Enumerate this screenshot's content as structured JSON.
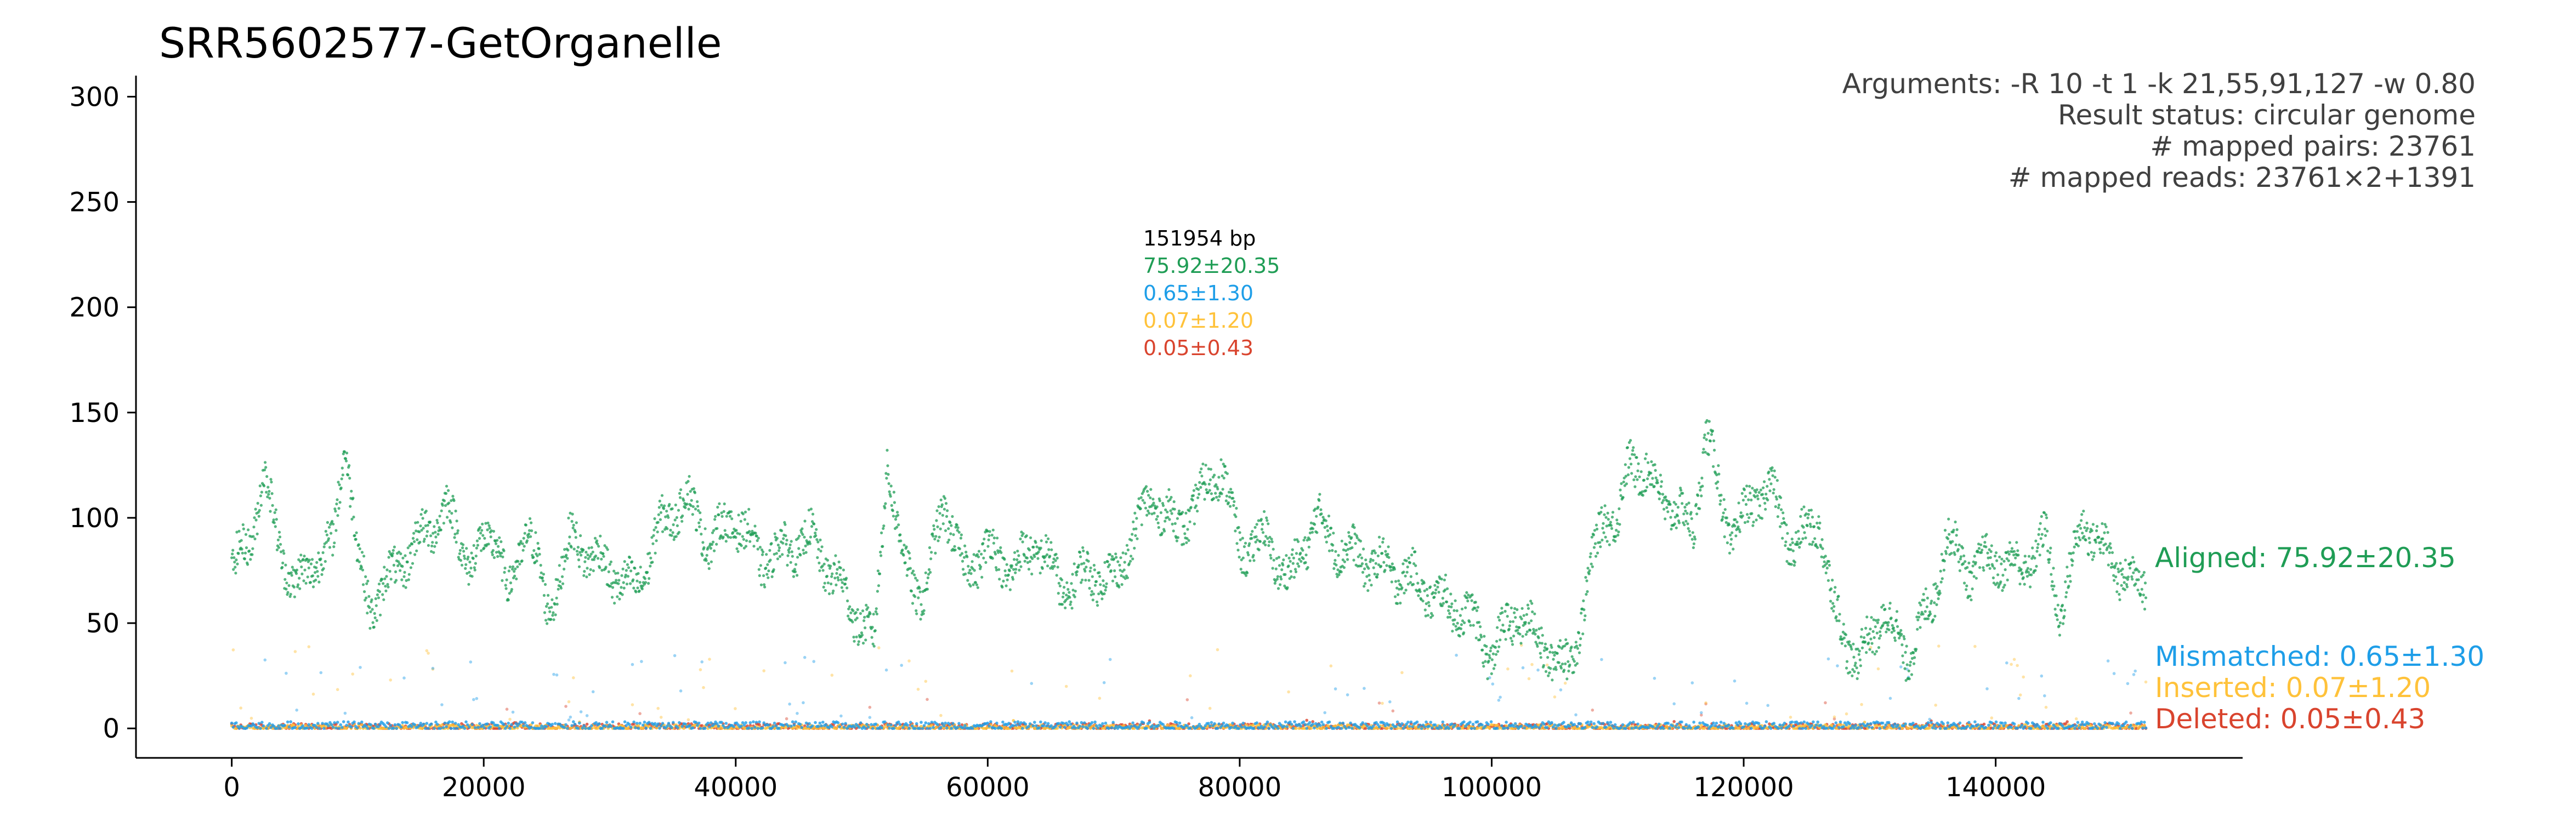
{
  "chart_data": {
    "type": "scatter",
    "title": "SRR5602577-GetOrganelle",
    "xlabel": "",
    "ylabel": "",
    "xlim": [
      -7600,
      159600
    ],
    "ylim": [
      -14,
      310
    ],
    "x_ticks": [
      0,
      20000,
      40000,
      60000,
      80000,
      100000,
      120000,
      140000
    ],
    "x_tick_labels": [
      "0",
      "20000",
      "40000",
      "60000",
      "80000",
      "100000",
      "120000",
      "140000"
    ],
    "y_ticks": [
      0,
      50,
      100,
      150,
      200,
      250,
      300
    ],
    "y_tick_labels": [
      "0",
      "50",
      "100",
      "150",
      "200",
      "250",
      "300"
    ],
    "grid": false,
    "genome_length_bp": 151954,
    "arguments": [
      "Arguments: -R 10 -t 1 -k 21,55,91,127 -w 0.80",
      "Result status: circular genome",
      "# mapped pairs: 23761",
      "# mapped reads: 23761×2+1391"
    ],
    "center_stats": [
      "151954 bp",
      "75.92±20.35",
      "0.65±1.30",
      "0.07±1.20",
      "0.05±0.43"
    ],
    "series": [
      {
        "name": "Aligned",
        "label": "Aligned: 75.92±20.35",
        "color": "#1f9d55",
        "mean": 75.92,
        "sd": 20.35,
        "profile": [
          [
            0,
            75
          ],
          [
            1500,
            90
          ],
          [
            2500,
            120
          ],
          [
            3500,
            95
          ],
          [
            5000,
            65
          ],
          [
            6500,
            80
          ],
          [
            8000,
            85
          ],
          [
            9000,
            140
          ],
          [
            10000,
            80
          ],
          [
            11000,
            58
          ],
          [
            13000,
            75
          ],
          [
            15000,
            90
          ],
          [
            17000,
            105
          ],
          [
            19000,
            78
          ],
          [
            21000,
            95
          ],
          [
            22000,
            60
          ],
          [
            23500,
            100
          ],
          [
            25000,
            55
          ],
          [
            27000,
            90
          ],
          [
            30000,
            75
          ],
          [
            32000,
            65
          ],
          [
            34000,
            95
          ],
          [
            36000,
            110
          ],
          [
            38000,
            88
          ],
          [
            40000,
            100
          ],
          [
            42000,
            80
          ],
          [
            44000,
            85
          ],
          [
            46000,
            90
          ],
          [
            48000,
            70
          ],
          [
            50000,
            50
          ],
          [
            51000,
            40
          ],
          [
            52000,
            130
          ],
          [
            53000,
            85
          ],
          [
            55000,
            60
          ],
          [
            56500,
            110
          ],
          [
            58000,
            75
          ],
          [
            60000,
            85
          ],
          [
            62000,
            75
          ],
          [
            64000,
            88
          ],
          [
            66000,
            65
          ],
          [
            68000,
            75
          ],
          [
            70000,
            70
          ],
          [
            71500,
            90
          ],
          [
            73000,
            110
          ],
          [
            75000,
            95
          ],
          [
            77000,
            110
          ],
          [
            78500,
            125
          ],
          [
            80000,
            85
          ],
          [
            82000,
            90
          ],
          [
            84000,
            70
          ],
          [
            86000,
            100
          ],
          [
            88000,
            85
          ],
          [
            90000,
            80
          ],
          [
            92000,
            75
          ],
          [
            94000,
            70
          ],
          [
            96000,
            60
          ],
          [
            98000,
            55
          ],
          [
            100000,
            35
          ],
          [
            102000,
            55
          ],
          [
            104000,
            40
          ],
          [
            106000,
            28
          ],
          [
            107000,
            50
          ],
          [
            109000,
            105
          ],
          [
            110000,
            95
          ],
          [
            111000,
            130
          ],
          [
            113000,
            115
          ],
          [
            115000,
            100
          ],
          [
            116000,
            95
          ],
          [
            117000,
            140
          ],
          [
            119000,
            90
          ],
          [
            121000,
            110
          ],
          [
            122000,
            115
          ],
          [
            124000,
            85
          ],
          [
            126000,
            100
          ],
          [
            127000,
            60
          ],
          [
            128000,
            45
          ],
          [
            129000,
            30
          ],
          [
            131000,
            55
          ],
          [
            133000,
            35
          ],
          [
            135000,
            60
          ],
          [
            136000,
            90
          ],
          [
            138000,
            75
          ],
          [
            140000,
            80
          ],
          [
            142000,
            75
          ],
          [
            144000,
            90
          ],
          [
            145000,
            55
          ],
          [
            146000,
            75
          ],
          [
            147000,
            100
          ],
          [
            149000,
            80
          ],
          [
            151000,
            70
          ],
          [
            151954,
            68
          ]
        ]
      },
      {
        "name": "Mismatched",
        "label": "Mismatched: 0.65±1.30",
        "color": "#1e9ee8",
        "mean": 0.65,
        "sd": 1.3
      },
      {
        "name": "Inserted",
        "label": "Inserted: 0.07±1.20",
        "color": "#ffc23a",
        "mean": 0.07,
        "sd": 1.2
      },
      {
        "name": "Deleted",
        "label": "Deleted: 0.05±0.43",
        "color": "#d9442e",
        "mean": 0.05,
        "sd": 0.43
      }
    ]
  }
}
